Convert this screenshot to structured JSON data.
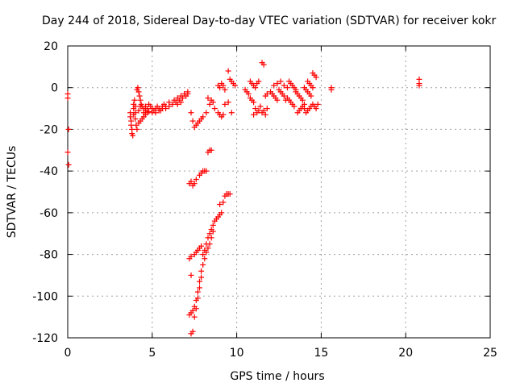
{
  "chart_data": {
    "type": "scatter",
    "title": "Day 244 of 2018, Sidereal Day-to-day VTEC variation (SDTVAR) for receiver kokr",
    "xlabel": "GPS time / hours",
    "ylabel": "SDTVAR / TECUs",
    "xlim": [
      0,
      25
    ],
    "ylim": [
      -120,
      20
    ],
    "xticks": [
      0,
      5,
      10,
      15,
      20,
      25
    ],
    "yticks": [
      -120,
      -100,
      -80,
      -60,
      -40,
      -20,
      0,
      20
    ],
    "xtick_labels": [
      "0",
      "5",
      "10",
      "15",
      "20",
      "25"
    ],
    "ytick_labels": [
      "-120",
      "-100",
      "-80",
      "-60",
      "-40",
      "-20",
      "0",
      "20"
    ],
    "grid": true,
    "marker": "+",
    "color": "#ff0000",
    "series": [
      {
        "name": "SDTVAR",
        "points": [
          [
            0.0,
            -3
          ],
          [
            0.0,
            -5
          ],
          [
            0.05,
            -20
          ],
          [
            0.0,
            -31
          ],
          [
            0.05,
            -37
          ],
          [
            3.7,
            -12
          ],
          [
            3.7,
            -14
          ],
          [
            3.75,
            -16
          ],
          [
            3.75,
            -18
          ],
          [
            3.8,
            -20
          ],
          [
            3.8,
            -22
          ],
          [
            3.85,
            -23
          ],
          [
            3.9,
            -10
          ],
          [
            3.9,
            -8
          ],
          [
            3.95,
            -6
          ],
          [
            4.0,
            -12
          ],
          [
            4.0,
            -15
          ],
          [
            4.05,
            -18
          ],
          [
            4.1,
            -20
          ],
          [
            4.1,
            -1
          ],
          [
            4.15,
            0
          ],
          [
            4.2,
            -2
          ],
          [
            4.25,
            -4
          ],
          [
            4.3,
            -6
          ],
          [
            4.35,
            -8
          ],
          [
            4.4,
            -9
          ],
          [
            4.2,
            -17
          ],
          [
            4.3,
            -16
          ],
          [
            4.4,
            -15
          ],
          [
            4.5,
            -14
          ],
          [
            4.6,
            -13
          ],
          [
            4.7,
            -12
          ],
          [
            4.8,
            -11.5
          ],
          [
            4.5,
            -10
          ],
          [
            4.6,
            -9
          ],
          [
            4.7,
            -10
          ],
          [
            4.8,
            -8
          ],
          [
            4.9,
            -9
          ],
          [
            5.0,
            -10
          ],
          [
            5.1,
            -11
          ],
          [
            5.2,
            -10
          ],
          [
            5.3,
            -9
          ],
          [
            5.4,
            -10
          ],
          [
            5.5,
            -11
          ],
          [
            5.6,
            -9
          ],
          [
            5.7,
            -8
          ],
          [
            5.8,
            -9
          ],
          [
            5.0,
            -12
          ],
          [
            5.2,
            -12
          ],
          [
            5.4,
            -11
          ],
          [
            5.6,
            -10
          ],
          [
            5.8,
            -10
          ],
          [
            6.0,
            -9
          ],
          [
            6.0,
            -7
          ],
          [
            6.2,
            -8
          ],
          [
            6.3,
            -6
          ],
          [
            6.4,
            -7
          ],
          [
            6.5,
            -5
          ],
          [
            6.6,
            -6
          ],
          [
            6.7,
            -4
          ],
          [
            6.8,
            -5
          ],
          [
            6.9,
            -3
          ],
          [
            7.0,
            -4
          ],
          [
            7.1,
            -2
          ],
          [
            7.1,
            -3
          ],
          [
            6.5,
            -8
          ],
          [
            6.7,
            -7
          ],
          [
            4.0,
            -9
          ],
          [
            4.3,
            -9
          ],
          [
            4.6,
            -11
          ],
          [
            3.9,
            -13
          ],
          [
            4.2,
            -11
          ],
          [
            4.5,
            -12
          ],
          [
            7.2,
            -46
          ],
          [
            7.3,
            -45
          ],
          [
            7.4,
            -47
          ],
          [
            7.5,
            -46
          ],
          [
            7.6,
            -44
          ],
          [
            7.2,
            -82
          ],
          [
            7.3,
            -81
          ],
          [
            7.3,
            -90
          ],
          [
            7.2,
            -109
          ],
          [
            7.3,
            -108
          ],
          [
            7.4,
            -107
          ],
          [
            7.5,
            -105
          ],
          [
            7.6,
            -102
          ],
          [
            7.7,
            -98
          ],
          [
            7.8,
            -93
          ],
          [
            7.9,
            -88
          ],
          [
            8.0,
            -85
          ],
          [
            7.5,
            -110
          ],
          [
            7.6,
            -106
          ],
          [
            7.7,
            -101
          ],
          [
            7.8,
            -96
          ],
          [
            7.9,
            -91
          ],
          [
            7.5,
            -80
          ],
          [
            7.6,
            -79
          ],
          [
            7.7,
            -78
          ],
          [
            7.8,
            -77
          ],
          [
            7.9,
            -76
          ],
          [
            8.0,
            -80
          ],
          [
            8.1,
            -78
          ],
          [
            8.2,
            -75
          ],
          [
            8.3,
            -72
          ],
          [
            8.4,
            -70
          ],
          [
            8.5,
            -68
          ],
          [
            8.6,
            -66
          ],
          [
            8.7,
            -64
          ],
          [
            8.8,
            -63
          ],
          [
            8.9,
            -62
          ],
          [
            9.0,
            -61
          ],
          [
            9.1,
            -60
          ],
          [
            8.1,
            -82
          ],
          [
            8.2,
            -79
          ],
          [
            8.3,
            -77
          ],
          [
            8.4,
            -75
          ],
          [
            8.5,
            -72
          ],
          [
            8.6,
            -69
          ],
          [
            7.3,
            -118
          ],
          [
            7.4,
            -117
          ],
          [
            7.8,
            -42
          ],
          [
            7.9,
            -41
          ],
          [
            8.0,
            -40
          ],
          [
            8.1,
            -40
          ],
          [
            8.2,
            -40
          ],
          [
            8.3,
            -31
          ],
          [
            8.4,
            -30
          ],
          [
            8.5,
            -30
          ],
          [
            9.0,
            -56
          ],
          [
            9.2,
            -55
          ],
          [
            9.3,
            -52
          ],
          [
            9.4,
            -51
          ],
          [
            9.5,
            -51
          ],
          [
            9.6,
            -51
          ],
          [
            7.3,
            -12
          ],
          [
            7.4,
            -16
          ],
          [
            7.5,
            -19
          ],
          [
            7.6,
            -18
          ],
          [
            7.7,
            -17
          ],
          [
            7.8,
            -16
          ],
          [
            7.9,
            -15
          ],
          [
            8.0,
            -14
          ],
          [
            8.2,
            -12
          ],
          [
            8.4,
            -8
          ],
          [
            8.6,
            -7
          ],
          [
            8.3,
            -5
          ],
          [
            8.5,
            -6
          ],
          [
            8.7,
            -10
          ],
          [
            8.9,
            -12
          ],
          [
            9.0,
            -13
          ],
          [
            9.1,
            -14
          ],
          [
            9.2,
            -13
          ],
          [
            9.3,
            -8
          ],
          [
            9.5,
            -7
          ],
          [
            9.7,
            -12
          ],
          [
            8.9,
            1
          ],
          [
            9.0,
            0
          ],
          [
            9.1,
            2
          ],
          [
            9.2,
            1
          ],
          [
            9.3,
            -1
          ],
          [
            9.5,
            8
          ],
          [
            9.6,
            4
          ],
          [
            9.7,
            3
          ],
          [
            9.8,
            2
          ],
          [
            9.9,
            1
          ],
          [
            10.5,
            -1
          ],
          [
            10.6,
            -2
          ],
          [
            10.7,
            -3
          ],
          [
            10.8,
            -5
          ],
          [
            10.9,
            -6
          ],
          [
            11.0,
            -7
          ],
          [
            11.0,
            -13
          ],
          [
            11.1,
            -10
          ],
          [
            11.2,
            -12
          ],
          [
            11.3,
            -11
          ],
          [
            11.4,
            -9
          ],
          [
            11.5,
            12
          ],
          [
            11.6,
            11
          ],
          [
            11.7,
            -4
          ],
          [
            11.8,
            -3
          ],
          [
            10.8,
            3
          ],
          [
            10.9,
            2
          ],
          [
            11.0,
            1
          ],
          [
            11.1,
            0
          ],
          [
            11.2,
            2
          ],
          [
            11.3,
            3
          ],
          [
            11.5,
            -12
          ],
          [
            11.6,
            -11
          ],
          [
            11.7,
            -13
          ],
          [
            11.8,
            -10
          ],
          [
            12.0,
            -2
          ],
          [
            12.1,
            -3
          ],
          [
            12.2,
            -4
          ],
          [
            12.3,
            -5
          ],
          [
            12.4,
            -6
          ],
          [
            12.5,
            -1
          ],
          [
            12.6,
            -2
          ],
          [
            12.7,
            -3
          ],
          [
            12.8,
            -4
          ],
          [
            12.9,
            -6
          ],
          [
            12.2,
            1
          ],
          [
            12.4,
            2
          ],
          [
            12.6,
            3
          ],
          [
            12.8,
            1
          ],
          [
            13.0,
            0
          ],
          [
            13.0,
            -5
          ],
          [
            13.1,
            -6
          ],
          [
            13.2,
            -7
          ],
          [
            13.3,
            -8
          ],
          [
            13.4,
            -9
          ],
          [
            13.1,
            3
          ],
          [
            13.2,
            2
          ],
          [
            13.3,
            1
          ],
          [
            13.4,
            0
          ],
          [
            13.5,
            -1
          ],
          [
            13.5,
            -2
          ],
          [
            13.6,
            -3
          ],
          [
            13.7,
            -4
          ],
          [
            13.8,
            -5
          ],
          [
            13.9,
            -6
          ],
          [
            13.6,
            -12
          ],
          [
            13.7,
            -11
          ],
          [
            13.8,
            -10
          ],
          [
            13.9,
            -9
          ],
          [
            14.0,
            -8
          ],
          [
            14.0,
            0
          ],
          [
            14.1,
            -1
          ],
          [
            14.2,
            -2
          ],
          [
            14.3,
            -3
          ],
          [
            14.4,
            -4
          ],
          [
            14.2,
            3
          ],
          [
            14.3,
            2
          ],
          [
            14.4,
            1
          ],
          [
            14.5,
            0
          ],
          [
            14.0,
            -10
          ],
          [
            14.1,
            -12
          ],
          [
            14.2,
            -11
          ],
          [
            14.3,
            -10
          ],
          [
            14.4,
            -9
          ],
          [
            14.5,
            -8
          ],
          [
            14.6,
            -9
          ],
          [
            14.7,
            -10
          ],
          [
            14.8,
            -8
          ],
          [
            14.5,
            7
          ],
          [
            14.6,
            6
          ],
          [
            14.7,
            5
          ],
          [
            15.6,
            0
          ],
          [
            15.6,
            -1
          ],
          [
            20.8,
            4
          ],
          [
            20.8,
            2
          ],
          [
            20.8,
            1
          ]
        ]
      }
    ]
  }
}
